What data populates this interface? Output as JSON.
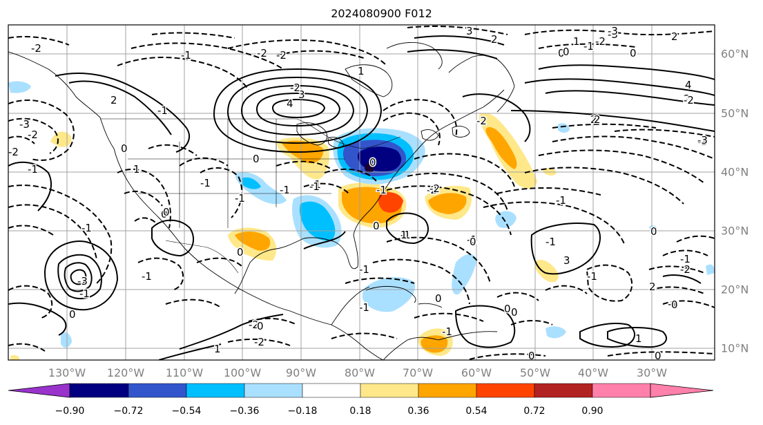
{
  "title": "2024080900 F012",
  "lon_labels": [
    "130°W",
    "120°W",
    "110°W",
    "100°W",
    "90°W",
    "80°W",
    "70°W",
    "60°W",
    "50°W",
    "40°W",
    "30°W"
  ],
  "lat_labels": [
    "60°N",
    "50°N",
    "40°N",
    "30°N",
    "20°N",
    "10°N"
  ],
  "colorbar": {
    "colors": [
      "#9933cc",
      "#000080",
      "#3355cc",
      "#00bfff",
      "#aae0ff",
      "#ffffff",
      "#ffe88a",
      "#ffa500",
      "#ff4400",
      "#b22222",
      "#ff80aa"
    ],
    "tick_labels": [
      "−0.90",
      "−0.72",
      "−0.54",
      "−0.36",
      "−0.18",
      "0.18",
      "0.36",
      "0.54",
      "0.72",
      "0.90"
    ]
  },
  "map": {
    "projection": "lat-lon",
    "extent": {
      "lon": [
        -138,
        -17
      ],
      "lat": [
        7,
        64
      ]
    },
    "gridlines": true,
    "contour_style": {
      "positive": "solid",
      "negative": "dashed"
    },
    "contour_labels": [
      "-2",
      "-2",
      "-3",
      "-2",
      "2",
      "0",
      "1",
      "-1",
      "-1",
      "-3",
      "-1",
      "0",
      "4",
      "3",
      "1",
      "0",
      "-1",
      "-1",
      "3",
      "2",
      "0",
      "0",
      "2",
      "-3",
      "4",
      "2",
      "2",
      "-3",
      "-2",
      "-1",
      "-1",
      "0",
      "0",
      "-2",
      "-1",
      "-1",
      "0",
      "-2",
      "0",
      "-1",
      "-1",
      "-1",
      "3",
      "-1",
      "-1",
      "0",
      "-2",
      "2",
      "-1",
      "-1",
      "-1",
      "1",
      "0",
      "0",
      "0",
      "1",
      "-2",
      "-1",
      "0",
      "1",
      "0",
      "-1",
      "-1",
      "0",
      "0",
      "-1",
      "-1",
      "-2",
      "1",
      "0",
      "2",
      "1",
      "-2",
      "-1",
      "0",
      "-2",
      "-2",
      "-3",
      "-3",
      "-2",
      "-2",
      "0",
      "0"
    ]
  }
}
